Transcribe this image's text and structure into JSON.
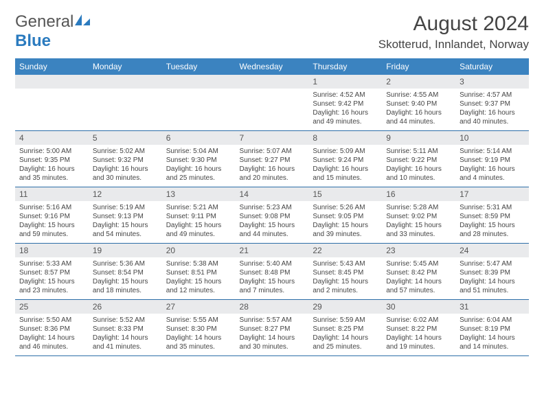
{
  "logo": {
    "text1": "General",
    "text2": "Blue"
  },
  "title": "August 2024",
  "location": "Skotterud, Innlandet, Norway",
  "colors": {
    "header_bg": "#3b83c0",
    "header_text": "#ffffff",
    "daynum_bg": "#e9eaec",
    "rule": "#2b6da8"
  },
  "weekdays": [
    "Sunday",
    "Monday",
    "Tuesday",
    "Wednesday",
    "Thursday",
    "Friday",
    "Saturday"
  ],
  "weeks": [
    [
      null,
      null,
      null,
      null,
      {
        "n": "1",
        "sr": "4:52 AM",
        "ss": "9:42 PM",
        "dl": "16 hours and 49 minutes."
      },
      {
        "n": "2",
        "sr": "4:55 AM",
        "ss": "9:40 PM",
        "dl": "16 hours and 44 minutes."
      },
      {
        "n": "3",
        "sr": "4:57 AM",
        "ss": "9:37 PM",
        "dl": "16 hours and 40 minutes."
      }
    ],
    [
      {
        "n": "4",
        "sr": "5:00 AM",
        "ss": "9:35 PM",
        "dl": "16 hours and 35 minutes."
      },
      {
        "n": "5",
        "sr": "5:02 AM",
        "ss": "9:32 PM",
        "dl": "16 hours and 30 minutes."
      },
      {
        "n": "6",
        "sr": "5:04 AM",
        "ss": "9:30 PM",
        "dl": "16 hours and 25 minutes."
      },
      {
        "n": "7",
        "sr": "5:07 AM",
        "ss": "9:27 PM",
        "dl": "16 hours and 20 minutes."
      },
      {
        "n": "8",
        "sr": "5:09 AM",
        "ss": "9:24 PM",
        "dl": "16 hours and 15 minutes."
      },
      {
        "n": "9",
        "sr": "5:11 AM",
        "ss": "9:22 PM",
        "dl": "16 hours and 10 minutes."
      },
      {
        "n": "10",
        "sr": "5:14 AM",
        "ss": "9:19 PM",
        "dl": "16 hours and 4 minutes."
      }
    ],
    [
      {
        "n": "11",
        "sr": "5:16 AM",
        "ss": "9:16 PM",
        "dl": "15 hours and 59 minutes."
      },
      {
        "n": "12",
        "sr": "5:19 AM",
        "ss": "9:13 PM",
        "dl": "15 hours and 54 minutes."
      },
      {
        "n": "13",
        "sr": "5:21 AM",
        "ss": "9:11 PM",
        "dl": "15 hours and 49 minutes."
      },
      {
        "n": "14",
        "sr": "5:23 AM",
        "ss": "9:08 PM",
        "dl": "15 hours and 44 minutes."
      },
      {
        "n": "15",
        "sr": "5:26 AM",
        "ss": "9:05 PM",
        "dl": "15 hours and 39 minutes."
      },
      {
        "n": "16",
        "sr": "5:28 AM",
        "ss": "9:02 PM",
        "dl": "15 hours and 33 minutes."
      },
      {
        "n": "17",
        "sr": "5:31 AM",
        "ss": "8:59 PM",
        "dl": "15 hours and 28 minutes."
      }
    ],
    [
      {
        "n": "18",
        "sr": "5:33 AM",
        "ss": "8:57 PM",
        "dl": "15 hours and 23 minutes."
      },
      {
        "n": "19",
        "sr": "5:36 AM",
        "ss": "8:54 PM",
        "dl": "15 hours and 18 minutes."
      },
      {
        "n": "20",
        "sr": "5:38 AM",
        "ss": "8:51 PM",
        "dl": "15 hours and 12 minutes."
      },
      {
        "n": "21",
        "sr": "5:40 AM",
        "ss": "8:48 PM",
        "dl": "15 hours and 7 minutes."
      },
      {
        "n": "22",
        "sr": "5:43 AM",
        "ss": "8:45 PM",
        "dl": "15 hours and 2 minutes."
      },
      {
        "n": "23",
        "sr": "5:45 AM",
        "ss": "8:42 PM",
        "dl": "14 hours and 57 minutes."
      },
      {
        "n": "24",
        "sr": "5:47 AM",
        "ss": "8:39 PM",
        "dl": "14 hours and 51 minutes."
      }
    ],
    [
      {
        "n": "25",
        "sr": "5:50 AM",
        "ss": "8:36 PM",
        "dl": "14 hours and 46 minutes."
      },
      {
        "n": "26",
        "sr": "5:52 AM",
        "ss": "8:33 PM",
        "dl": "14 hours and 41 minutes."
      },
      {
        "n": "27",
        "sr": "5:55 AM",
        "ss": "8:30 PM",
        "dl": "14 hours and 35 minutes."
      },
      {
        "n": "28",
        "sr": "5:57 AM",
        "ss": "8:27 PM",
        "dl": "14 hours and 30 minutes."
      },
      {
        "n": "29",
        "sr": "5:59 AM",
        "ss": "8:25 PM",
        "dl": "14 hours and 25 minutes."
      },
      {
        "n": "30",
        "sr": "6:02 AM",
        "ss": "8:22 PM",
        "dl": "14 hours and 19 minutes."
      },
      {
        "n": "31",
        "sr": "6:04 AM",
        "ss": "8:19 PM",
        "dl": "14 hours and 14 minutes."
      }
    ]
  ],
  "labels": {
    "sunrise": "Sunrise: ",
    "sunset": "Sunset: ",
    "daylight": "Daylight: "
  }
}
